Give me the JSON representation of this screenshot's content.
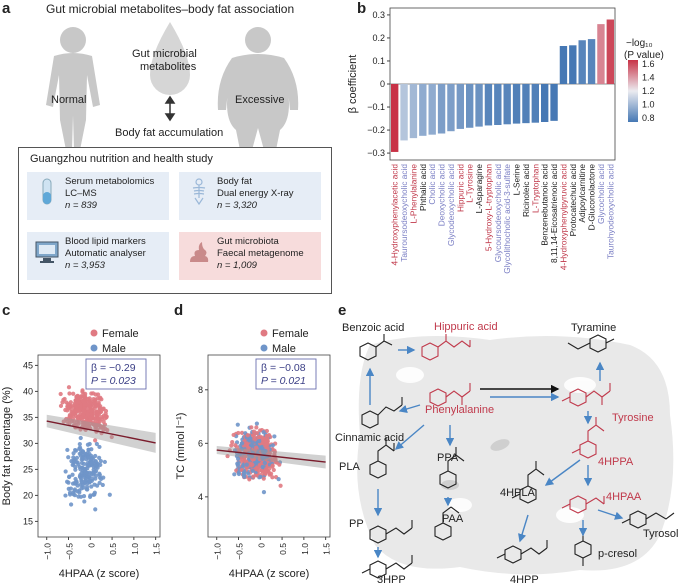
{
  "panel_a": {
    "letter": "a",
    "title": "Gut microbial metabolites–body fat association",
    "normal_label": "Normal",
    "excessive_label": "Excessive",
    "metabolites_label_1": "Gut microbial",
    "metabolites_label_2": "metabolites",
    "accumulation_label": "Body fat accumulation",
    "study_title": "Guangzhou nutrition and health study",
    "cards": [
      {
        "line1": "Serum metabolomics",
        "line2": "LC–MS",
        "n": "n = 839",
        "bg": "#e6edf6"
      },
      {
        "line1": "Body fat",
        "line2": "Dual energy X-ray",
        "n": "n = 3,320",
        "bg": "#e6edf6"
      },
      {
        "line1": "Blood lipid markers",
        "line2": "Automatic analyser",
        "n": "n = 3,953",
        "bg": "#e6edf6"
      },
      {
        "line1": "Gut microbiota",
        "line2": "Faecal metagenome",
        "n": "n = 1,009",
        "bg": "#f7dcdc"
      }
    ]
  },
  "panel_b": {
    "letter": "b",
    "legend_title_1": "−log₁₀",
    "legend_title_2": "(P value)",
    "legend_ticks": [
      "1.6",
      "1.4",
      "1.2",
      "1.0",
      "0.8"
    ]
  },
  "chart_data": [
    {
      "type": "bar",
      "title": "",
      "xlabel": "",
      "ylabel": "β coefficient",
      "ylim": [
        -0.33,
        0.33
      ],
      "yticks": [
        "0.3",
        "0.2",
        "0.1",
        "0",
        "−0.1",
        "−0.2",
        "−0.3"
      ],
      "categories": [
        "4-Hydroxyphenylacetic acid",
        "Tauroursodeoxycholic acid",
        "L-Phenylalanine",
        "Phthalic acid",
        "Cholic acid",
        "Deoxycholic acid",
        "Glycodeoxycholic acid",
        "Hippuric acid",
        "L-Tyrosine",
        "L-Asparagine",
        "5-Hydroxy-L-tryptophan",
        "Glycoursodeoxycholic acid",
        "Glycolithocholic acid-3-sulfate",
        "L-Serine",
        "Ricinoleic acid",
        "L-Tryptophan",
        "Benzenebutanoic acid",
        "8,11,14-Eicosatrienoic acid",
        "4-Hydroxyphenylpyruvic acid",
        "Protocatechuic acid",
        "Adipoylcarnitine",
        "D-Gluconolactone",
        "Glycocholic acid",
        "Taurohyodeoxycholic acid"
      ],
      "values": [
        -0.295,
        -0.245,
        -0.235,
        -0.225,
        -0.22,
        -0.215,
        -0.205,
        -0.195,
        -0.19,
        -0.185,
        -0.18,
        -0.178,
        -0.175,
        -0.172,
        -0.17,
        -0.168,
        -0.165,
        -0.16,
        0.165,
        0.168,
        0.19,
        0.195,
        0.26,
        0.28
      ],
      "neglog10p": [
        1.65,
        1.05,
        1.0,
        0.95,
        0.95,
        0.9,
        0.9,
        0.88,
        0.85,
        0.85,
        0.8,
        0.8,
        0.8,
        0.78,
        0.78,
        0.78,
        0.75,
        0.75,
        0.75,
        0.75,
        0.8,
        0.8,
        1.45,
        1.6
      ],
      "label_colors": [
        "#c0394b",
        "#7b7fc4",
        "#c0394b",
        "#222",
        "#7b7fc4",
        "#7b7fc4",
        "#7b7fc4",
        "#c0394b",
        "#c0394b",
        "#222",
        "#c0394b",
        "#7b7fc4",
        "#7b7fc4",
        "#222",
        "#222",
        "#c0394b",
        "#222",
        "#222",
        "#c0394b",
        "#222",
        "#222",
        "#222",
        "#7b7fc4",
        "#7b7fc4"
      ]
    },
    {
      "type": "scatter",
      "panel": "c",
      "xlabel": "4HPAA (z score)",
      "ylabel": "Body fat percentage (%)",
      "xlim": [
        -1.2,
        1.6
      ],
      "ylim": [
        12,
        47
      ],
      "xticks": [
        "−1.0",
        "−0.5",
        "0",
        "0.5",
        "1.0",
        "1.5"
      ],
      "yticks": [
        "45",
        "40",
        "35",
        "30",
        "25",
        "20",
        "15"
      ],
      "series": [
        {
          "name": "Female",
          "color": "#e07a82"
        },
        {
          "name": "Male",
          "color": "#6f95c9"
        }
      ],
      "regression": {
        "x": [
          -1.0,
          1.5
        ],
        "y": [
          34.3,
          30.1
        ]
      },
      "beta": "β = −0.29",
      "p": "P = 0.023"
    },
    {
      "type": "scatter",
      "panel": "d",
      "xlabel": "4HPAA (z score)",
      "ylabel": "TC (mmol l⁻¹)",
      "xlim": [
        -1.2,
        1.6
      ],
      "ylim": [
        2.5,
        9.3
      ],
      "xticks": [
        "−1.0",
        "−0.5",
        "0",
        "0.5",
        "1.0",
        "1.5"
      ],
      "yticks": [
        "8",
        "6",
        "4"
      ],
      "series": [
        {
          "name": "Female",
          "color": "#e07a82"
        },
        {
          "name": "Male",
          "color": "#6f95c9"
        }
      ],
      "regression": {
        "x": [
          -1.0,
          1.5
        ],
        "y": [
          5.75,
          5.3
        ]
      },
      "beta": "β = −0.08",
      "p": "P = 0.021"
    }
  ],
  "panel_c": {
    "letter": "c"
  },
  "panel_d": {
    "letter": "d"
  },
  "panel_e": {
    "letter": "e",
    "labels": {
      "benzoic": "Benzoic acid",
      "hippuric": "Hippuric acid",
      "tyramine": "Tyramine",
      "cinnamic": "Cinnamic acid",
      "phenylalanine": "Phenylalanine",
      "tyrosine": "Tyrosine",
      "pla": "PLA",
      "ppa": "PPA",
      "hpha": "4HPLA",
      "hppa": "4HPPA",
      "hpaa": "4HPAA",
      "pp": "PP",
      "paa": "PAA",
      "tyrosol": "Tyrosol",
      "pcresol": "p-cresol",
      "hpp4": "4HPP",
      "hpp3": "3HPP"
    }
  }
}
